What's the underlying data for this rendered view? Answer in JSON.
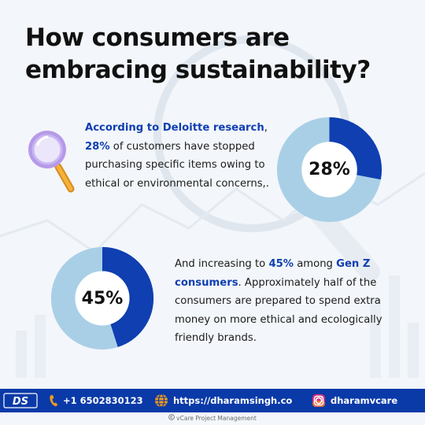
{
  "title": {
    "line1": "How consumers are",
    "line2": "embracing sustainability?"
  },
  "block1": {
    "lead": "According to Deloitte research",
    "after_lead": ",",
    "stat": "28%",
    "rest": " of customers have stopped purchasing specific items owing to ethical or environmental concerns,."
  },
  "block2": {
    "before": "And increasing to ",
    "stat": "45%",
    "middle": " among ",
    "group": "Gen Z consumers",
    "rest": ". Approximately half of the consumers are prepared to spend extra money on more ethical and ecologically friendly brands."
  },
  "donuts": [
    {
      "label": "28%",
      "value": 0.28,
      "color": "#0f3fb0",
      "track": "#a9cfe6"
    },
    {
      "label": "45%",
      "value": 0.45,
      "color": "#0f3fb0",
      "track": "#a9cfe6"
    }
  ],
  "footer": {
    "logo_text": "DS",
    "phone": "+1 6502830123",
    "website": "https://dharamsingh.co",
    "instagram": "dharamvcare",
    "background": "#0a3aa8"
  },
  "credit": {
    "icon": "copyright-icon",
    "text": "vCare Project Management"
  },
  "icons": {
    "magnifier": "magnifier-icon",
    "phone": "phone-icon",
    "globe": "globe-icon",
    "instagram": "instagram-icon"
  }
}
